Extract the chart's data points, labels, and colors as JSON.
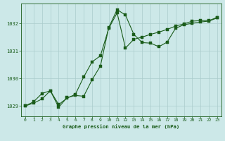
{
  "title": "Graphe pression niveau de la mer (hPa)",
  "bg_color": "#cce8e8",
  "line_color": "#1a5c1a",
  "grid_color": "#aacccc",
  "text_color": "#1a5c1a",
  "ylim": [
    1028.62,
    1032.72
  ],
  "xlim": [
    -0.5,
    23.5
  ],
  "yticks": [
    1029,
    1030,
    1031,
    1032
  ],
  "xticks": [
    0,
    1,
    2,
    3,
    4,
    5,
    6,
    7,
    8,
    9,
    10,
    11,
    12,
    13,
    14,
    15,
    16,
    17,
    18,
    19,
    20,
    21,
    22,
    23
  ],
  "series1_x": [
    0,
    1,
    2,
    3,
    4,
    5,
    6,
    7,
    8,
    9,
    10,
    11,
    12,
    13,
    14,
    15,
    16,
    17,
    18,
    19,
    20,
    21,
    22,
    23
  ],
  "series1_y": [
    1029.0,
    1029.15,
    1029.45,
    1029.55,
    1028.95,
    1029.3,
    1029.38,
    1029.35,
    1029.95,
    1030.45,
    1031.85,
    1032.5,
    1032.3,
    1031.6,
    1031.3,
    1031.28,
    1031.15,
    1031.32,
    1031.82,
    1031.95,
    1032.0,
    1032.05,
    1032.08,
    1032.2
  ],
  "series2_x": [
    0,
    1,
    2,
    3,
    4,
    5,
    6,
    7,
    8,
    9,
    10,
    11,
    12,
    13,
    14,
    15,
    16,
    17,
    18,
    19,
    20,
    21,
    22,
    23
  ],
  "series2_y": [
    1029.0,
    1029.1,
    1029.25,
    1029.55,
    1029.05,
    1029.28,
    1029.42,
    1030.05,
    1030.6,
    1030.82,
    1031.82,
    1032.38,
    1031.1,
    1031.42,
    1031.5,
    1031.6,
    1031.68,
    1031.78,
    1031.9,
    1031.98,
    1032.08,
    1032.1,
    1032.1,
    1032.22
  ],
  "marker_size": 2.5,
  "linewidth": 0.8
}
